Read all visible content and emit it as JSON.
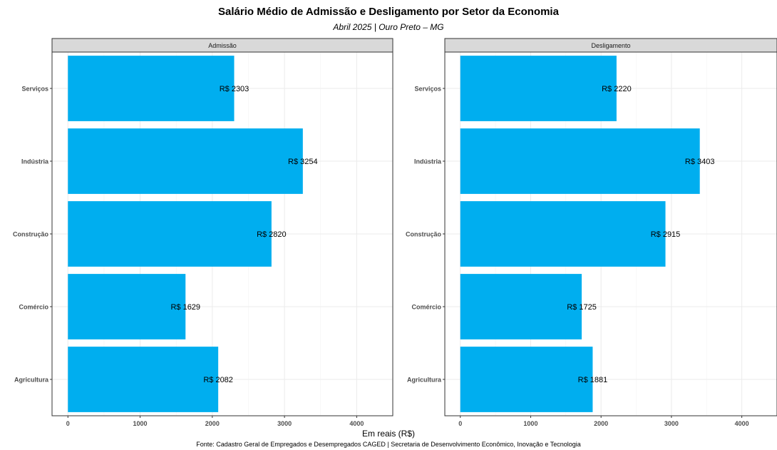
{
  "chart": {
    "title": "Salário Médio de Admissão e Desligamento por Setor da Economia",
    "subtitle": "Abril 2025 | Ouro Preto – MG",
    "xlabel": "Em reais (R$)",
    "caption": "Fonte: Cadastro Geral de Empregados e Desempregados CAGED | Secretaria de Desenvolvimento Econômico, Inovação e Tecnologia"
  },
  "colors": {
    "bar": "#00AEEF",
    "strip": "#D9D9D9",
    "grid": "#EBEBEB",
    "axis": "#333333"
  },
  "chart_data": [
    {
      "type": "bar",
      "orientation": "horizontal",
      "panel": "Admissão",
      "categories": [
        "Serviços",
        "Indústria",
        "Construção",
        "Comércio",
        "Agricultura"
      ],
      "values": [
        2303,
        3254,
        2820,
        1629,
        2082
      ],
      "labels": [
        "R$ 2303",
        "R$ 3254",
        "R$ 2820",
        "R$ 1629",
        "R$ 2082"
      ],
      "xticks": [
        0,
        1000,
        2000,
        3000,
        4000
      ],
      "xlim": [
        -220,
        4500
      ],
      "grid": true
    },
    {
      "type": "bar",
      "orientation": "horizontal",
      "panel": "Desligamento",
      "categories": [
        "Serviços",
        "Indústria",
        "Construção",
        "Comércio",
        "Agricultura"
      ],
      "values": [
        2220,
        3403,
        2915,
        1725,
        1881
      ],
      "labels": [
        "R$ 2220",
        "R$ 3403",
        "R$ 2915",
        "R$ 1725",
        "R$ 1881"
      ],
      "xticks": [
        0,
        1000,
        2000,
        3000,
        4000
      ],
      "xlim": [
        -220,
        4500
      ],
      "grid": true
    }
  ]
}
